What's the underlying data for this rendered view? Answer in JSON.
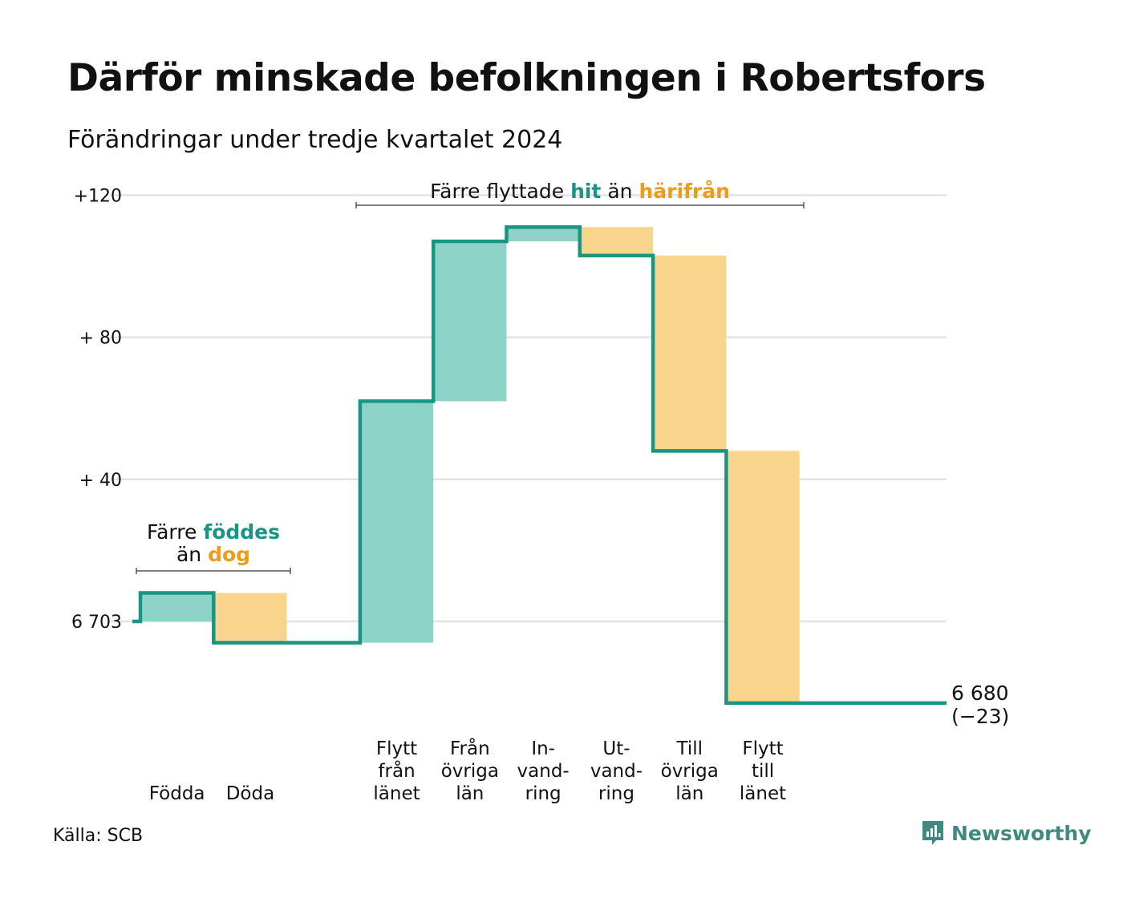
{
  "title": "Därför minskade befolkningen i Robertsfors",
  "subtitle": "Förändringar under tredje kvartalet 2024",
  "source": "Källa: SCB",
  "brand": {
    "name": "Newsworthy",
    "icon": "newsworthy-logo-icon"
  },
  "colors": {
    "increase": "#8dd3c8",
    "decrease": "#f9d48c",
    "line": "#1a9483",
    "highlight_in": "#1a9483",
    "highlight_out": "#f09a1a",
    "grid": "#e3e3e3"
  },
  "chart_data": {
    "type": "waterfall",
    "start_value": 6703,
    "end_value": 6680,
    "end_label": "6 680",
    "end_change_label": "(−23)",
    "ylim": [
      -23,
      120
    ],
    "grid": true,
    "y_ticks": [
      {
        "value": 0,
        "label": "6 703"
      },
      {
        "value": 40,
        "label": "+ 40"
      },
      {
        "value": 80,
        "label": "+ 80"
      },
      {
        "value": 120,
        "label": "+120"
      }
    ],
    "steps": [
      {
        "label": [
          "Födda"
        ],
        "change": 8,
        "type": "increase"
      },
      {
        "label": [
          "Döda"
        ],
        "change": -14,
        "type": "decrease"
      },
      {
        "label": [],
        "change": 0,
        "type": "none"
      },
      {
        "label": [
          "Flytt",
          "från",
          "länet"
        ],
        "change": 68,
        "type": "increase"
      },
      {
        "label": [
          "Från",
          "övriga",
          "län"
        ],
        "change": 45,
        "type": "increase"
      },
      {
        "label": [
          "In-",
          "vand-",
          "ring"
        ],
        "change": 4,
        "type": "increase"
      },
      {
        "label": [
          "Ut-",
          "vand-",
          "ring"
        ],
        "change": -8,
        "type": "decrease"
      },
      {
        "label": [
          "Till",
          "övriga",
          "län"
        ],
        "change": -55,
        "type": "decrease"
      },
      {
        "label": [
          "Flytt",
          "till",
          "länet"
        ],
        "change": -71,
        "type": "decrease"
      }
    ],
    "annotations": [
      {
        "lines": [
          [
            {
              "text": "Färre ",
              "style": "plain"
            },
            {
              "text": "föddes",
              "style": "in"
            }
          ],
          [
            {
              "text": "än ",
              "style": "plain"
            },
            {
              "text": "dog",
              "style": "out"
            }
          ]
        ],
        "from_step": 0,
        "to_step": 1
      },
      {
        "lines": [
          [
            {
              "text": "Färre flyttade ",
              "style": "plain"
            },
            {
              "text": "hit",
              "style": "in"
            },
            {
              "text": "  än ",
              "style": "plain"
            },
            {
              "text": "härifrån",
              "style": "out"
            }
          ]
        ],
        "from_step": 3,
        "to_step": 8
      }
    ]
  }
}
